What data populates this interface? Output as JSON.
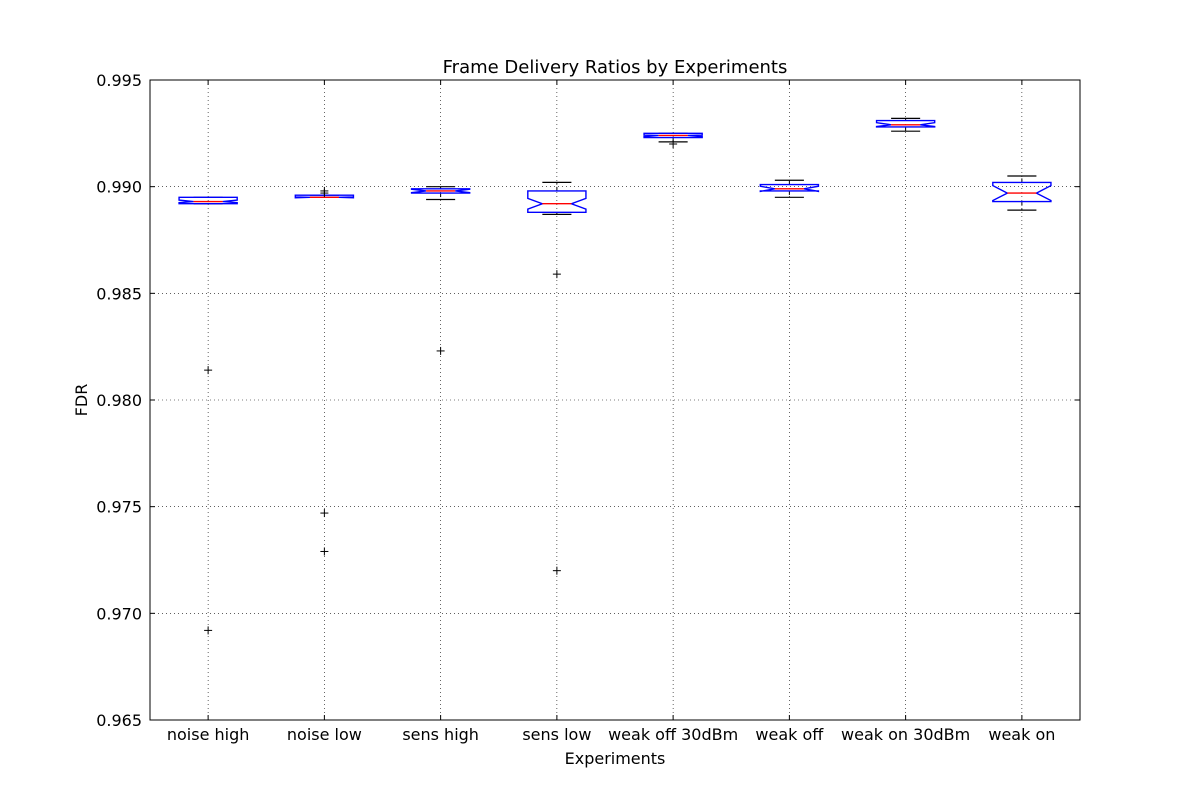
{
  "chart_data": {
    "type": "box",
    "title": "Frame Delivery Ratios by Experiments",
    "xlabel": "Experiments",
    "ylabel": "FDR",
    "ylim": [
      0.965,
      0.995
    ],
    "yticks": [
      "0.965",
      "0.970",
      "0.975",
      "0.980",
      "0.985",
      "0.990",
      "0.995"
    ],
    "grid": true,
    "notched": true,
    "colors": {
      "box": "#0000ff",
      "median": "#ff0000",
      "whisker": "#000000",
      "flier": "#000000"
    },
    "categories": [
      "noise high",
      "noise low",
      "sens high",
      "sens low",
      "weak off 30dBm",
      "weak off",
      "weak on 30dBm",
      "weak on"
    ],
    "boxes": [
      {
        "whislo": 0.9892,
        "q1": 0.9892,
        "med": 0.9893,
        "q3": 0.9895,
        "whishi": 0.9895,
        "notch_lo": 0.98925,
        "notch_hi": 0.98937,
        "fliers": [
          0.9814,
          0.9692
        ]
      },
      {
        "whislo": 0.9895,
        "q1": 0.9895,
        "med": 0.9895,
        "q3": 0.9896,
        "whishi": 0.9896,
        "notch_lo": 0.98948,
        "notch_hi": 0.98952,
        "fliers": [
          0.9898,
          0.9897,
          0.9747,
          0.9729
        ]
      },
      {
        "whislo": 0.9894,
        "q1": 0.9897,
        "med": 0.9898,
        "q3": 0.9899,
        "whishi": 0.99,
        "notch_lo": 0.98972,
        "notch_hi": 0.98988,
        "fliers": [
          0.9823
        ]
      },
      {
        "whislo": 0.9887,
        "q1": 0.9888,
        "med": 0.9892,
        "q3": 0.9898,
        "whishi": 0.9902,
        "notch_lo": 0.98895,
        "notch_hi": 0.98945,
        "fliers": [
          0.9859,
          0.972
        ]
      },
      {
        "whislo": 0.9921,
        "q1": 0.9923,
        "med": 0.9924,
        "q3": 0.9925,
        "whishi": 0.9925,
        "notch_lo": 0.99235,
        "notch_hi": 0.99242,
        "fliers": [
          0.992
        ]
      },
      {
        "whislo": 0.9895,
        "q1": 0.9898,
        "med": 0.9899,
        "q3": 0.9901,
        "whishi": 0.9903,
        "notch_lo": 0.98978,
        "notch_hi": 0.99002,
        "fliers": []
      },
      {
        "whislo": 0.9926,
        "q1": 0.9928,
        "med": 0.9929,
        "q3": 0.9931,
        "whishi": 0.9932,
        "notch_lo": 0.99282,
        "notch_hi": 0.993,
        "fliers": []
      },
      {
        "whislo": 0.9889,
        "q1": 0.9893,
        "med": 0.9897,
        "q3": 0.9902,
        "whishi": 0.9905,
        "notch_lo": 0.98935,
        "notch_hi": 0.99005,
        "fliers": []
      }
    ]
  }
}
